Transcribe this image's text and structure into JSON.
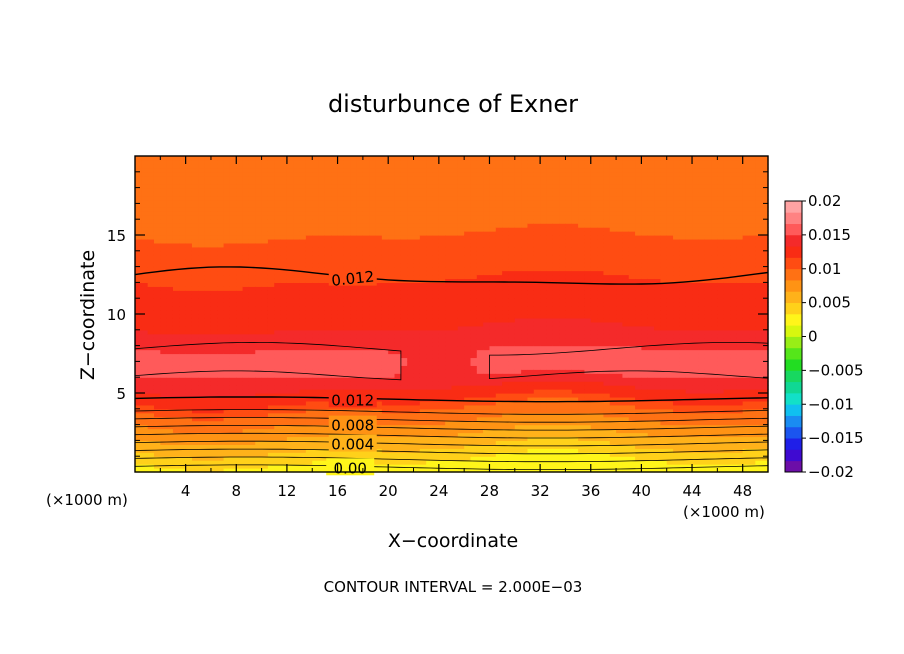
{
  "chart_data": {
    "type": "heatmap",
    "title": "disturbunce of Exner",
    "xlabel": "X−coordinate",
    "ylabel": "Z−coordinate",
    "x_unit_label": "(×1000 m)",
    "x_unit_label_right": "(×1000 m)",
    "footer": "CONTOUR INTERVAL = 2.000E−03",
    "xlim": [
      0,
      50
    ],
    "ylim": [
      0,
      20
    ],
    "x_ticks": [
      "4",
      "8",
      "12",
      "16",
      "20",
      "24",
      "28",
      "32",
      "36",
      "40",
      "44",
      "48"
    ],
    "y_ticks": [
      "5",
      "10",
      "15"
    ],
    "contour_labels": [
      "0.012",
      "0.012",
      "0.008",
      "0.004",
      "0.00"
    ],
    "colorbar": {
      "labels": [
        "0.02",
        "0.015",
        "0.01",
        "0.005",
        "0",
        "−0.005",
        "−0.01",
        "−0.015",
        "−0.02"
      ],
      "range": [
        -0.02,
        0.02
      ],
      "colors": [
        "#6c0ea8",
        "#3f0ad1",
        "#1f1fe8",
        "#1b55ef",
        "#1a8cf2",
        "#10c0f0",
        "#12e0c8",
        "#10d894",
        "#18d860",
        "#22dd22",
        "#55e61a",
        "#98ee16",
        "#d8f70f",
        "#fff51a",
        "#ffd11a",
        "#ffb21a",
        "#ff9314",
        "#ff7114",
        "#ff4c12",
        "#f92c14",
        "#f42a2a",
        "#ff5a5a",
        "#ff8282",
        "#ffa3a3"
      ]
    },
    "field": {
      "x": [
        0,
        4,
        8,
        12,
        16,
        20,
        24,
        28,
        32,
        36,
        40,
        44,
        48,
        50
      ],
      "z_levels_value": [
        [
          0.0,
          0.002
        ],
        [
          0.6,
          0.003
        ],
        [
          1.0,
          0.004
        ],
        [
          1.5,
          0.005
        ],
        [
          2.0,
          0.006
        ],
        [
          2.5,
          0.007
        ],
        [
          3.0,
          0.008
        ],
        [
          3.5,
          0.009
        ],
        [
          4.0,
          0.01
        ],
        [
          4.6,
          0.012
        ],
        [
          6.0,
          0.0145
        ],
        [
          7.5,
          0.0145
        ],
        [
          9.5,
          0.013
        ],
        [
          12.5,
          0.0115
        ],
        [
          15.0,
          0.01
        ],
        [
          17.5,
          0.009
        ],
        [
          20.0,
          0.0085
        ]
      ]
    }
  }
}
